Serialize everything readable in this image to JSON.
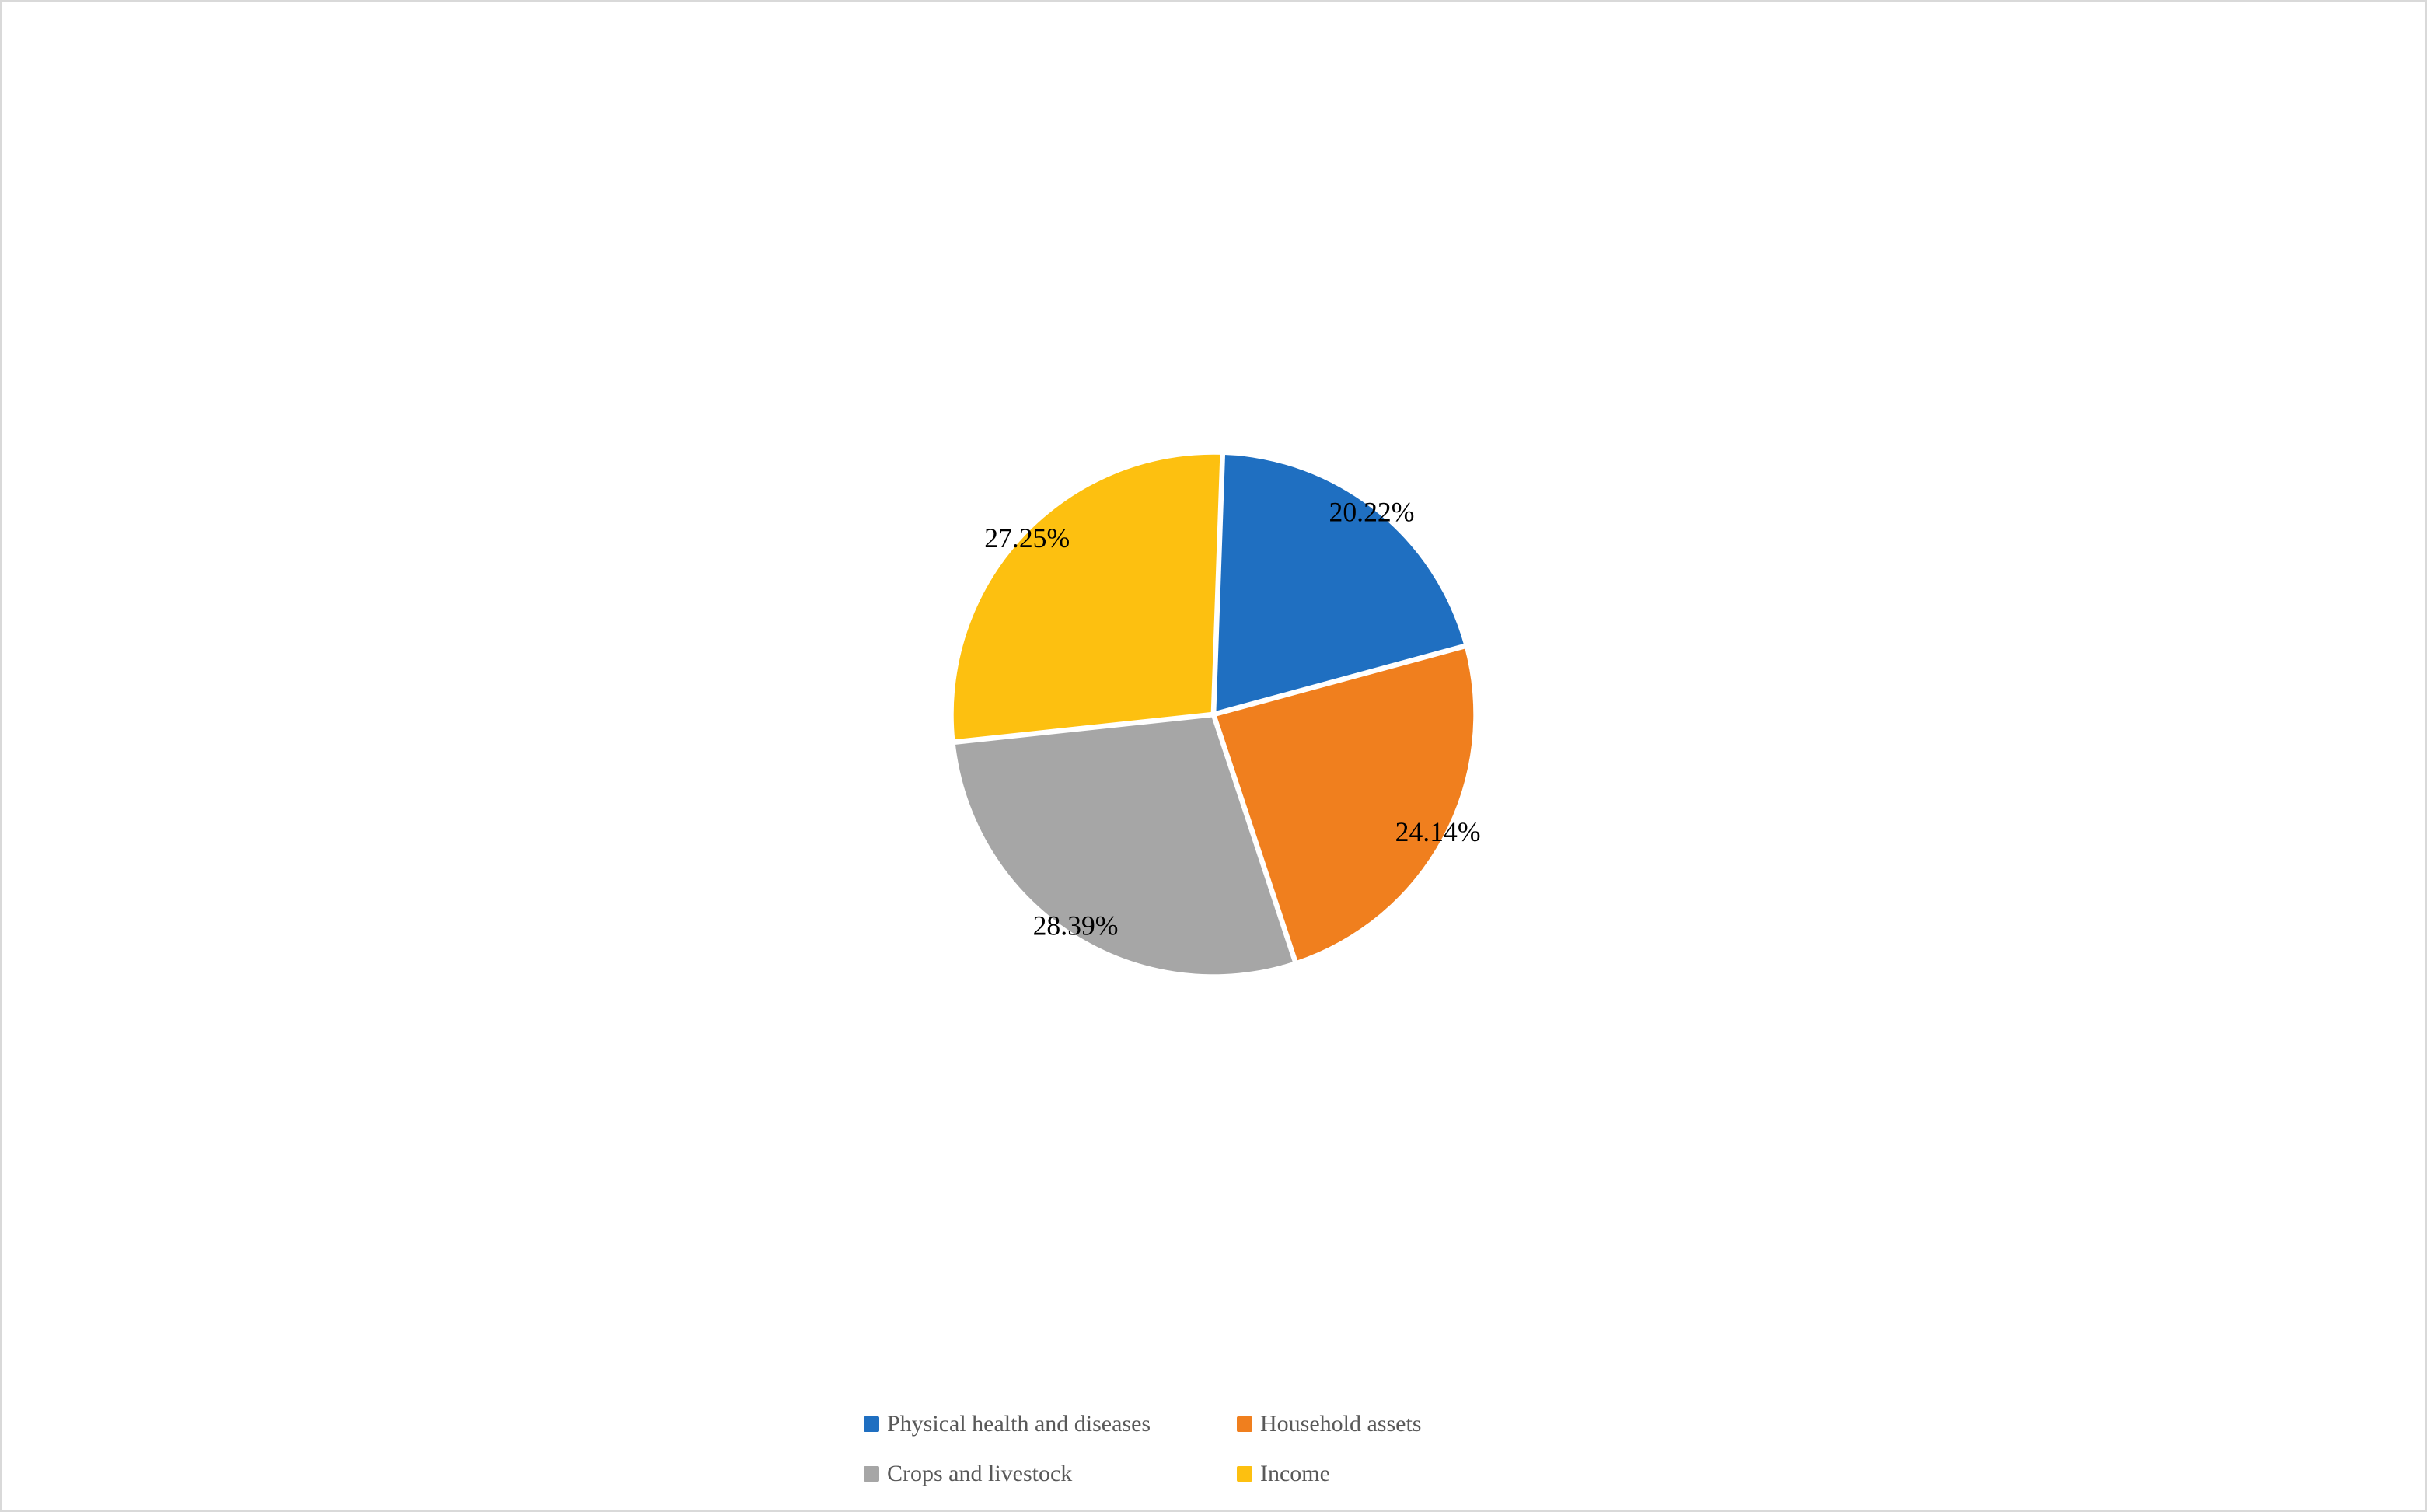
{
  "chart": {
    "type": "pie",
    "background_color": "#ffffff",
    "border_color": "#d9d9d9",
    "slice_gap_color": "#ffffff",
    "slice_gap_width": 6,
    "start_angle_deg": 2,
    "radius": 300,
    "label_fontsize": 32,
    "label_color": "#000000",
    "label_font_family": "Times New Roman",
    "label_radius_factor": 0.98,
    "legend_fontsize": 30,
    "legend_color": "#595959",
    "legend_swatch_size": 20,
    "slices": [
      {
        "label": "Physical health and diseases",
        "value": 20.22,
        "color": "#1f6fc1",
        "data_label": "20.22%"
      },
      {
        "label": "Household assets",
        "value": 24.14,
        "color": "#f07f1e",
        "data_label": "24.14%"
      },
      {
        "label": "Crops and livestock",
        "value": 28.39,
        "color": "#a6a6a6",
        "data_label": "28.39%"
      },
      {
        "label": "Income",
        "value": 27.25,
        "color": "#fdc010",
        "data_label": "27.25%"
      }
    ]
  }
}
